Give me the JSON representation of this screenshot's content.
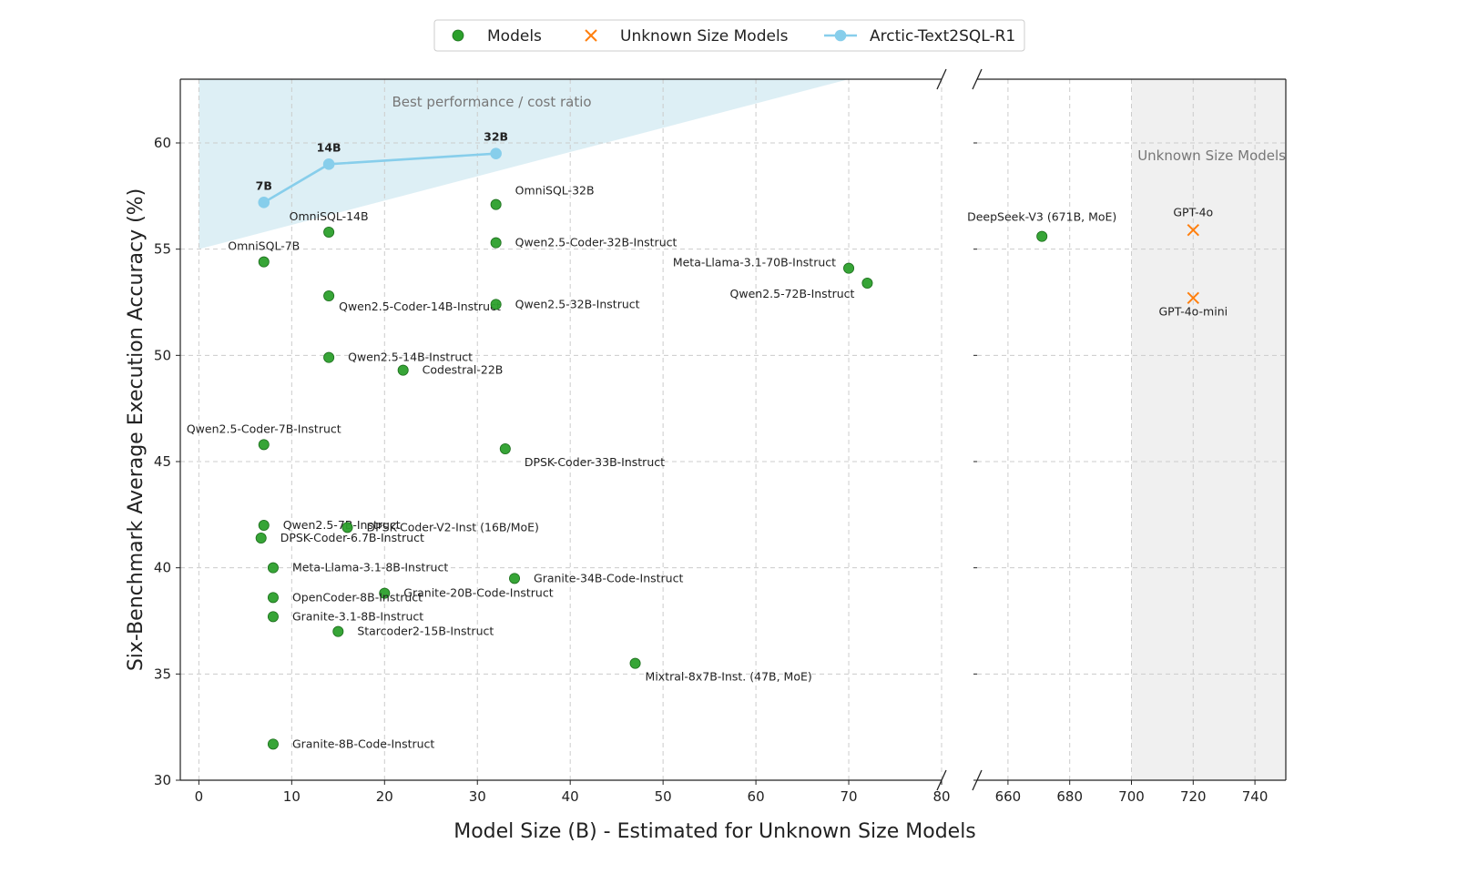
{
  "chart_data": {
    "type": "scatter",
    "xlabel": "Model Size (B) - Estimated for Unknown Size Models",
    "ylabel": "Six-Benchmark Average Execution Accuracy (%)",
    "ylim": [
      30,
      63
    ],
    "xlim_left": [
      -2,
      80
    ],
    "xlim_right": [
      650,
      750
    ],
    "xticks_left": [
      "0",
      "10",
      "20",
      "30",
      "40",
      "50",
      "60",
      "70",
      "80"
    ],
    "xticks_right": [
      "660",
      "680",
      "700",
      "720",
      "740"
    ],
    "yticks": [
      "30",
      "35",
      "40",
      "45",
      "50",
      "55",
      "60"
    ],
    "grid": true,
    "legend_position": "top-center",
    "legend": [
      {
        "label": "Models",
        "marker": "circle",
        "color": "#2ca02c"
      },
      {
        "label": "Unknown Size Models",
        "marker": "x",
        "color": "#ff7f0e"
      },
      {
        "label": "Arctic-Text2SQL-R1",
        "marker": "line-circle",
        "color": "#87ceeb"
      }
    ],
    "region_labels": {
      "best_ratio": "Best performance / cost ratio",
      "unknown_size": "Unknown Size Models"
    },
    "best_ratio_region": {
      "x_from": 0,
      "x_to": 70,
      "y_start": 55,
      "y_end": 63
    },
    "unknown_size_region": {
      "x_from": 700,
      "x_to": 750
    },
    "arctic_series": {
      "name": "Arctic-Text2SQL-R1",
      "points": [
        {
          "label": "7B",
          "x": 7,
          "y": 57.2
        },
        {
          "label": "14B",
          "x": 14,
          "y": 59.0
        },
        {
          "label": "32B",
          "x": 32,
          "y": 59.5
        }
      ]
    },
    "models": [
      {
        "label": "OmniSQL-32B",
        "x": 32,
        "y": 57.1
      },
      {
        "label": "OmniSQL-14B",
        "x": 14,
        "y": 55.8
      },
      {
        "label": "OmniSQL-7B",
        "x": 7,
        "y": 54.4
      },
      {
        "label": "Qwen2.5-Coder-32B-Instruct",
        "x": 32,
        "y": 55.3
      },
      {
        "label": "Qwen2.5-Coder-14B-Instruct",
        "x": 14,
        "y": 52.8
      },
      {
        "label": "Qwen2.5-32B-Instruct",
        "x": 32,
        "y": 52.4
      },
      {
        "label": "Meta-Llama-3.1-70B-Instruct",
        "x": 70,
        "y": 54.1
      },
      {
        "label": "Qwen2.5-72B-Instruct",
        "x": 72,
        "y": 53.4
      },
      {
        "label": "Qwen2.5-14B-Instruct",
        "x": 14,
        "y": 49.9
      },
      {
        "label": "Codestral-22B",
        "x": 22,
        "y": 49.3
      },
      {
        "label": "Qwen2.5-Coder-7B-Instruct",
        "x": 7,
        "y": 45.8
      },
      {
        "label": "DPSK-Coder-33B-Instruct",
        "x": 33,
        "y": 45.6
      },
      {
        "label": "Qwen2.5-7B-Instruct",
        "x": 7,
        "y": 42.0
      },
      {
        "label": "DPSK-Coder-V2-Inst (16B/MoE)",
        "x": 16,
        "y": 41.9
      },
      {
        "label": "DPSK-Coder-6.7B-Instruct",
        "x": 6.7,
        "y": 41.4
      },
      {
        "label": "Meta-Llama-3.1-8B-Instruct",
        "x": 8,
        "y": 40.0
      },
      {
        "label": "Granite-34B-Code-Instruct",
        "x": 34,
        "y": 39.5
      },
      {
        "label": "Granite-20B-Code-Instruct",
        "x": 20,
        "y": 38.8
      },
      {
        "label": "OpenCoder-8B-Instruct",
        "x": 8,
        "y": 38.6
      },
      {
        "label": "Granite-3.1-8B-Instruct",
        "x": 8,
        "y": 37.7
      },
      {
        "label": "Starcoder2-15B-Instruct",
        "x": 15,
        "y": 37.0
      },
      {
        "label": "Mixtral-8x7B-Inst. (47B, MoE)",
        "x": 47,
        "y": 35.5
      },
      {
        "label": "Granite-8B-Code-Instruct",
        "x": 8,
        "y": 31.7
      },
      {
        "label": "DeepSeek-V3 (671B, MoE)",
        "x": 671,
        "y": 55.6
      }
    ],
    "unknown_size_models": [
      {
        "label": "GPT-4o",
        "x": 720,
        "y": 55.9
      },
      {
        "label": "GPT-4o-mini",
        "x": 720,
        "y": 52.7
      }
    ]
  }
}
